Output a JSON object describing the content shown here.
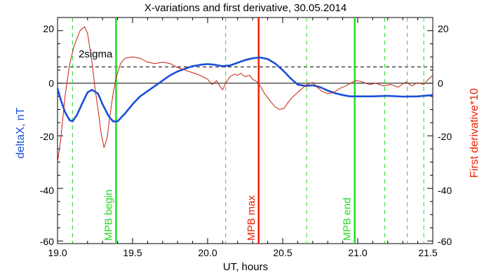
{
  "chart_data": {
    "type": "line",
    "title": "X-variations and first derivative, 30.05.2014",
    "xlabel": "UT, hours",
    "ylabel_left": "deltaX, nT",
    "ylabel_right": "First derivative*10",
    "xlim": [
      19.0,
      21.5
    ],
    "ylim": [
      -61,
      25
    ],
    "x_ticks": [
      "19.0",
      "19.5",
      "20.0",
      "20.5",
      "21.0",
      "21.5"
    ],
    "y_ticks_left": [
      "20",
      "0",
      "-20",
      "-40",
      "-60"
    ],
    "y_ticks_right": [
      "20",
      "0",
      "-20",
      "-40",
      "-60"
    ],
    "threshold": {
      "label": "2sigma",
      "value": 6.2
    },
    "zero_line": 0,
    "markers": [
      {
        "label": "MPB begin",
        "x": 19.39,
        "color": "#22dd22"
      },
      {
        "label": "MPB max",
        "x": 20.34,
        "color": "#ee2200"
      },
      {
        "label": "MPB end",
        "x": 20.98,
        "color": "#22dd22"
      }
    ],
    "dashed_markers_x": [
      19.1,
      20.12,
      20.66,
      21.18,
      21.33,
      21.44
    ],
    "series": [
      {
        "name": "deltaX, nT",
        "color": "#1a4fd6",
        "points": [
          [
            19.0,
            -2
          ],
          [
            19.02,
            -6
          ],
          [
            19.05,
            -11
          ],
          [
            19.08,
            -14
          ],
          [
            19.1,
            -14.5
          ],
          [
            19.13,
            -12
          ],
          [
            19.17,
            -7
          ],
          [
            19.2,
            -3.5
          ],
          [
            19.23,
            -2.5
          ],
          [
            19.27,
            -4
          ],
          [
            19.3,
            -8
          ],
          [
            19.34,
            -12.5
          ],
          [
            19.37,
            -14.5
          ],
          [
            19.4,
            -14.5
          ],
          [
            19.45,
            -11.5
          ],
          [
            19.5,
            -8
          ],
          [
            19.55,
            -5
          ],
          [
            19.6,
            -3
          ],
          [
            19.65,
            -1
          ],
          [
            19.7,
            1
          ],
          [
            19.75,
            3
          ],
          [
            19.8,
            4.5
          ],
          [
            19.85,
            5.5
          ],
          [
            19.9,
            6.5
          ],
          [
            19.95,
            7
          ],
          [
            20.0,
            7.3
          ],
          [
            20.05,
            7
          ],
          [
            20.1,
            6.5
          ],
          [
            20.15,
            6.8
          ],
          [
            20.2,
            7.8
          ],
          [
            20.25,
            8.8
          ],
          [
            20.3,
            9.5
          ],
          [
            20.35,
            9.8
          ],
          [
            20.4,
            9.2
          ],
          [
            20.45,
            7.5
          ],
          [
            20.5,
            5
          ],
          [
            20.55,
            2
          ],
          [
            20.6,
            -0.5
          ],
          [
            20.65,
            -1
          ],
          [
            20.7,
            -0.8
          ],
          [
            20.75,
            -1.5
          ],
          [
            20.8,
            -2.8
          ],
          [
            20.85,
            -3.8
          ],
          [
            20.9,
            -4.5
          ],
          [
            20.95,
            -5
          ],
          [
            21.0,
            -5
          ],
          [
            21.1,
            -5
          ],
          [
            21.2,
            -4.8
          ],
          [
            21.3,
            -5.1
          ],
          [
            21.4,
            -5
          ],
          [
            21.5,
            -4.5
          ]
        ]
      },
      {
        "name": "First derivative*10",
        "color": "#c42010",
        "points": [
          [
            19.0,
            -30
          ],
          [
            19.02,
            -22
          ],
          [
            19.05,
            -5
          ],
          [
            19.08,
            7
          ],
          [
            19.11,
            14
          ],
          [
            19.15,
            20
          ],
          [
            19.18,
            21.5
          ],
          [
            19.2,
            19
          ],
          [
            19.23,
            8
          ],
          [
            19.25,
            -2
          ],
          [
            19.27,
            -10
          ],
          [
            19.29,
            -19
          ],
          [
            19.31,
            -24.5
          ],
          [
            19.33,
            -21
          ],
          [
            19.35,
            -12
          ],
          [
            19.37,
            -4
          ],
          [
            19.39,
            2
          ],
          [
            19.42,
            7.5
          ],
          [
            19.45,
            9.5
          ],
          [
            19.5,
            10
          ],
          [
            19.55,
            9.5
          ],
          [
            19.6,
            8
          ],
          [
            19.65,
            7.5
          ],
          [
            19.7,
            8
          ],
          [
            19.75,
            7.5
          ],
          [
            19.8,
            6
          ],
          [
            19.85,
            5
          ],
          [
            19.9,
            4
          ],
          [
            19.95,
            3
          ],
          [
            20.0,
            1.5
          ],
          [
            20.03,
            -0.5
          ],
          [
            20.06,
            1
          ],
          [
            20.08,
            -1
          ],
          [
            20.1,
            -2.5
          ],
          [
            20.12,
            0
          ],
          [
            20.15,
            2.5
          ],
          [
            20.18,
            3.5
          ],
          [
            20.2,
            3
          ],
          [
            20.22,
            3.8
          ],
          [
            20.25,
            2.5
          ],
          [
            20.28,
            3
          ],
          [
            20.3,
            1.5
          ],
          [
            20.33,
            0.5
          ],
          [
            20.35,
            -1
          ],
          [
            20.38,
            -4
          ],
          [
            20.42,
            -7
          ],
          [
            20.45,
            -9
          ],
          [
            20.48,
            -10
          ],
          [
            20.51,
            -9.5
          ],
          [
            20.54,
            -7
          ],
          [
            20.57,
            -5
          ],
          [
            20.6,
            -3.5
          ],
          [
            20.63,
            -2
          ],
          [
            20.66,
            -0.5
          ],
          [
            20.7,
            0.3
          ],
          [
            20.73,
            -1.5
          ],
          [
            20.76,
            -3
          ],
          [
            20.8,
            -4
          ],
          [
            20.84,
            -3.5
          ],
          [
            20.88,
            -2
          ],
          [
            20.92,
            -1
          ],
          [
            20.95,
            0
          ],
          [
            20.99,
            1
          ],
          [
            21.03,
            0.5
          ],
          [
            21.08,
            -0.5
          ],
          [
            21.12,
            0
          ],
          [
            21.17,
            -1
          ],
          [
            21.22,
            -0.5
          ],
          [
            21.27,
            -1.5
          ],
          [
            21.32,
            0.5
          ],
          [
            21.36,
            -1
          ],
          [
            21.4,
            0.2
          ],
          [
            21.44,
            -0.5
          ],
          [
            21.47,
            1.5
          ],
          [
            21.5,
            3
          ]
        ]
      }
    ]
  }
}
